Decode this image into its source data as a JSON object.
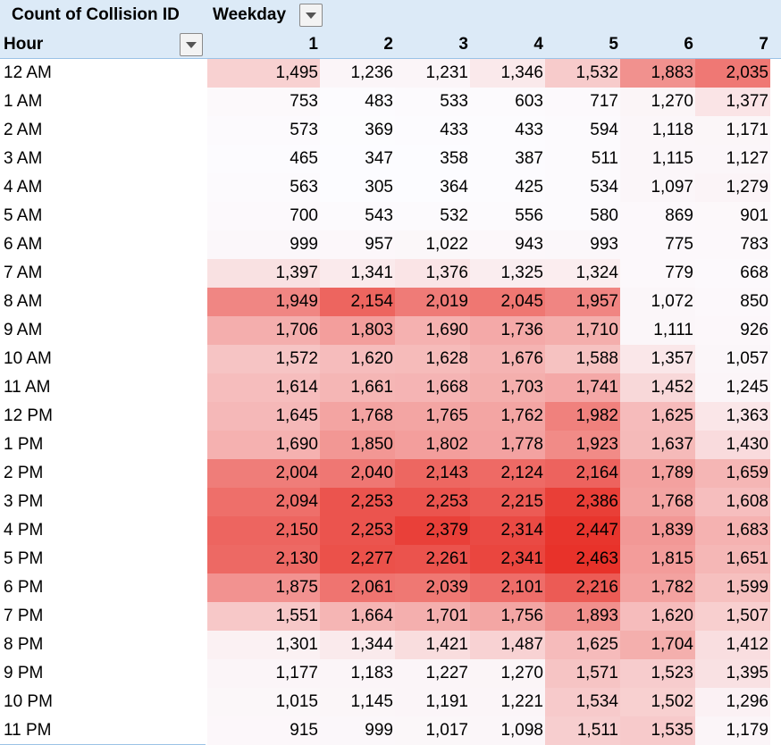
{
  "pivot": {
    "value_field": "Count of Collision ID",
    "column_field": "Weekday",
    "row_field": "Hour",
    "columns": [
      "1",
      "2",
      "3",
      "4",
      "5",
      "6",
      "7"
    ],
    "rows": [
      {
        "label": "12 AM",
        "values": [
          "1,495",
          "1,236",
          "1,231",
          "1,346",
          "1,532",
          "1,883",
          "2,035"
        ]
      },
      {
        "label": "1 AM",
        "values": [
          "753",
          "483",
          "533",
          "603",
          "717",
          "1,270",
          "1,377"
        ]
      },
      {
        "label": "2 AM",
        "values": [
          "573",
          "369",
          "433",
          "433",
          "594",
          "1,118",
          "1,171"
        ]
      },
      {
        "label": "3 AM",
        "values": [
          "465",
          "347",
          "358",
          "387",
          "511",
          "1,115",
          "1,127"
        ]
      },
      {
        "label": "4 AM",
        "values": [
          "563",
          "305",
          "364",
          "425",
          "534",
          "1,097",
          "1,279"
        ]
      },
      {
        "label": "5 AM",
        "values": [
          "700",
          "543",
          "532",
          "556",
          "580",
          "869",
          "901"
        ]
      },
      {
        "label": "6 AM",
        "values": [
          "999",
          "957",
          "1,022",
          "943",
          "993",
          "775",
          "783"
        ]
      },
      {
        "label": "7 AM",
        "values": [
          "1,397",
          "1,341",
          "1,376",
          "1,325",
          "1,324",
          "779",
          "668"
        ]
      },
      {
        "label": "8 AM",
        "values": [
          "1,949",
          "2,154",
          "2,019",
          "2,045",
          "1,957",
          "1,072",
          "850"
        ]
      },
      {
        "label": "9 AM",
        "values": [
          "1,706",
          "1,803",
          "1,690",
          "1,736",
          "1,710",
          "1,111",
          "926"
        ]
      },
      {
        "label": "10 AM",
        "values": [
          "1,572",
          "1,620",
          "1,628",
          "1,676",
          "1,588",
          "1,357",
          "1,057"
        ]
      },
      {
        "label": "11 AM",
        "values": [
          "1,614",
          "1,661",
          "1,668",
          "1,703",
          "1,741",
          "1,452",
          "1,245"
        ]
      },
      {
        "label": "12 PM",
        "values": [
          "1,645",
          "1,768",
          "1,765",
          "1,762",
          "1,982",
          "1,625",
          "1,363"
        ]
      },
      {
        "label": "1 PM",
        "values": [
          "1,690",
          "1,850",
          "1,802",
          "1,778",
          "1,923",
          "1,637",
          "1,430"
        ]
      },
      {
        "label": "2 PM",
        "values": [
          "2,004",
          "2,040",
          "2,143",
          "2,124",
          "2,164",
          "1,789",
          "1,659"
        ]
      },
      {
        "label": "3 PM",
        "values": [
          "2,094",
          "2,253",
          "2,253",
          "2,215",
          "2,386",
          "1,768",
          "1,608"
        ]
      },
      {
        "label": "4 PM",
        "values": [
          "2,150",
          "2,253",
          "2,379",
          "2,314",
          "2,447",
          "1,839",
          "1,683"
        ]
      },
      {
        "label": "5 PM",
        "values": [
          "2,130",
          "2,277",
          "2,261",
          "2,341",
          "2,463",
          "1,815",
          "1,651"
        ]
      },
      {
        "label": "6 PM",
        "values": [
          "1,875",
          "2,061",
          "2,039",
          "2,101",
          "2,216",
          "1,782",
          "1,599"
        ]
      },
      {
        "label": "7 PM",
        "values": [
          "1,551",
          "1,664",
          "1,701",
          "1,756",
          "1,893",
          "1,620",
          "1,507"
        ]
      },
      {
        "label": "8 PM",
        "values": [
          "1,301",
          "1,344",
          "1,421",
          "1,487",
          "1,625",
          "1,704",
          "1,412"
        ]
      },
      {
        "label": "9 PM",
        "values": [
          "1,177",
          "1,183",
          "1,227",
          "1,270",
          "1,571",
          "1,523",
          "1,395"
        ]
      },
      {
        "label": "10 PM",
        "values": [
          "1,015",
          "1,145",
          "1,191",
          "1,221",
          "1,534",
          "1,502",
          "1,296"
        ]
      },
      {
        "label": "11 PM",
        "values": [
          "915",
          "999",
          "1,017",
          "1,098",
          "1,511",
          "1,535",
          "1,179"
        ]
      }
    ]
  },
  "colors": {
    "header_bg": "#dceaf7",
    "heat_low": "#fcfcff",
    "heat_high": "#e8322a"
  },
  "icons": {
    "weekday_filter": "dropdown-arrow-icon",
    "hour_filter": "dropdown-arrow-icon"
  }
}
